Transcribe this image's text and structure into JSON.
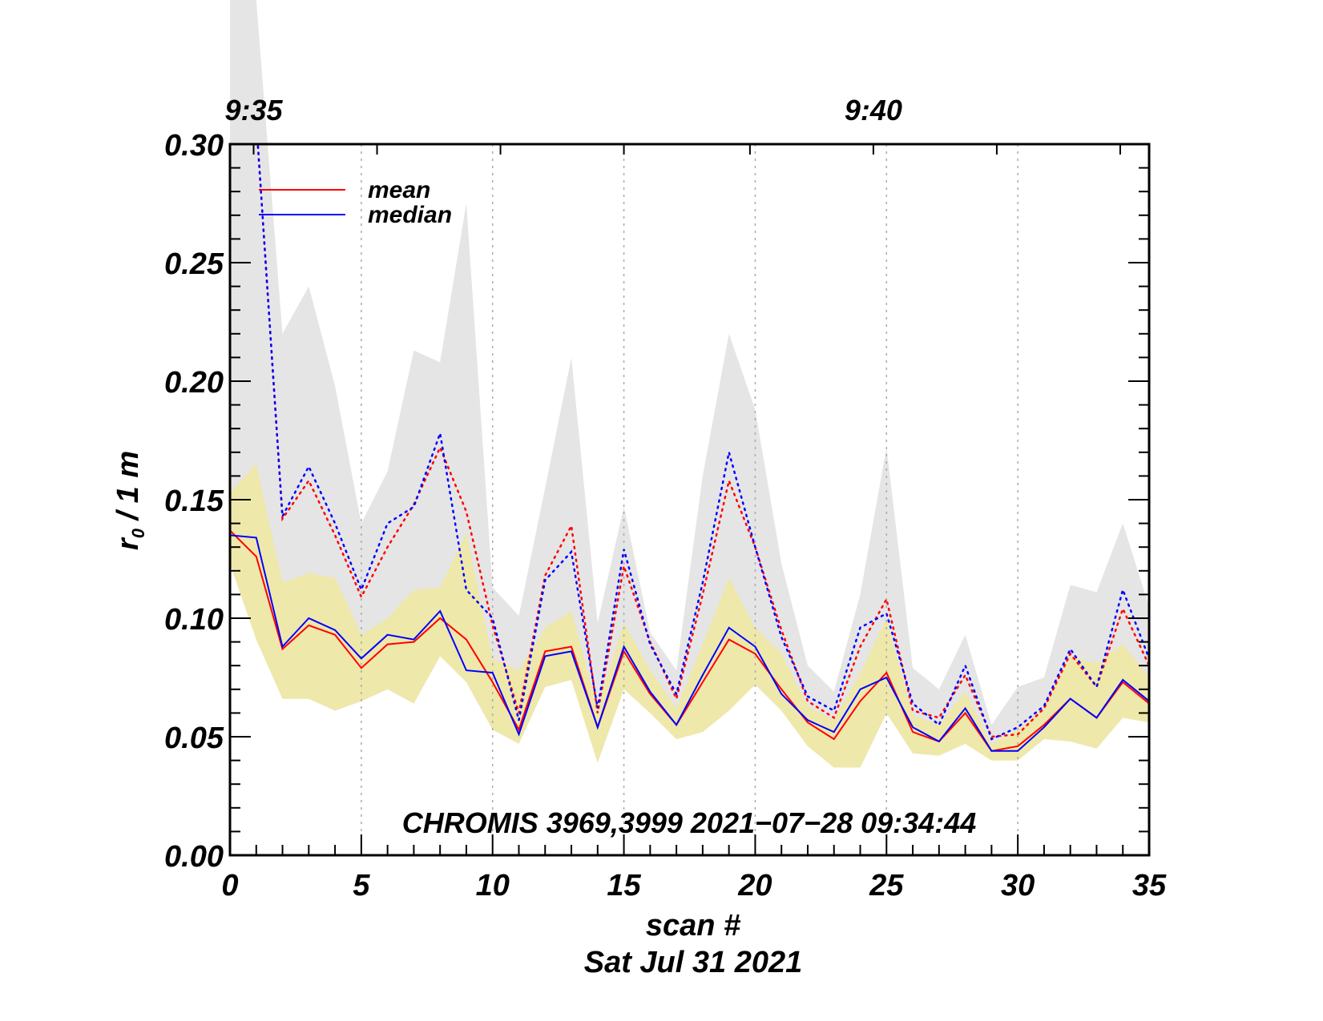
{
  "chart_data": {
    "type": "line",
    "title": "",
    "xlabel": "scan #",
    "xlabel2": "Sat Jul 31 2021",
    "ylabel": "r₀ / 1 m",
    "ylabel_main": "r",
    "ylabel_sub": "0",
    "ylabel_rest": " / 1 m",
    "annotation": "CHROMIS 3969,3999 2021−07−28 09:34:44",
    "xlim": [
      0,
      35
    ],
    "ylim": [
      0.0,
      0.3
    ],
    "x_ticks": [
      0,
      5,
      10,
      15,
      20,
      25,
      30,
      35
    ],
    "x_tick_labels": [
      "0",
      "5",
      "10",
      "15",
      "20",
      "25",
      "30",
      "35"
    ],
    "y_ticks": [
      0.0,
      0.05,
      0.1,
      0.15,
      0.2,
      0.25,
      0.3
    ],
    "y_tick_labels": [
      "0.00",
      "0.05",
      "0.10",
      "0.15",
      "0.20",
      "0.25",
      "0.30"
    ],
    "top_axis_labels": [
      {
        "scan": 0.9,
        "label": "9:35"
      },
      {
        "scan": 24.5,
        "label": "9:40"
      }
    ],
    "grid_verticals": [
      5,
      10,
      15,
      20,
      25,
      30
    ],
    "legend": {
      "placement": "top-left",
      "entries": [
        {
          "label": "mean",
          "color": "#ff0000"
        },
        {
          "label": "median",
          "color": "#0000ff"
        }
      ]
    },
    "x": [
      0,
      1,
      2,
      3,
      4,
      5,
      6,
      7,
      8,
      9,
      10,
      11,
      12,
      13,
      14,
      15,
      16,
      17,
      18,
      19,
      20,
      21,
      22,
      23,
      24,
      25,
      26,
      27,
      28,
      29,
      30,
      31,
      32,
      33,
      34,
      35
    ],
    "bands": [
      {
        "name": "max-range",
        "color": "#e5e5e5",
        "upper": [
          0.45,
          0.45,
          0.22,
          0.24,
          0.198,
          0.14,
          0.162,
          0.213,
          0.208,
          0.275,
          0.113,
          0.101,
          0.155,
          0.21,
          0.098,
          0.147,
          0.094,
          0.078,
          0.16,
          0.22,
          0.188,
          0.123,
          0.08,
          0.069,
          0.11,
          0.172,
          0.079,
          0.07,
          0.093,
          0.055,
          0.071,
          0.075,
          0.114,
          0.111,
          0.14,
          0.105
        ],
        "lower": [
          0.123,
          0.091,
          0.066,
          0.066,
          0.061,
          0.065,
          0.07,
          0.064,
          0.084,
          0.073,
          0.053,
          0.047,
          0.071,
          0.074,
          0.039,
          0.07,
          0.06,
          0.049,
          0.052,
          0.061,
          0.072,
          0.061,
          0.046,
          0.037,
          0.037,
          0.06,
          0.043,
          0.042,
          0.047,
          0.04,
          0.04,
          0.049,
          0.048,
          0.045,
          0.058,
          0.056
        ]
      },
      {
        "name": "std-range",
        "color": "#eee8aa",
        "upper": [
          0.153,
          0.165,
          0.115,
          0.119,
          0.117,
          0.093,
          0.1,
          0.112,
          0.113,
          0.136,
          0.083,
          0.078,
          0.096,
          0.103,
          0.063,
          0.098,
          0.078,
          0.062,
          0.089,
          0.117,
          0.096,
          0.085,
          0.063,
          0.057,
          0.077,
          0.1,
          0.059,
          0.055,
          0.069,
          0.047,
          0.053,
          0.062,
          0.084,
          0.081,
          0.089,
          0.075
        ],
        "lower": [
          0.123,
          0.091,
          0.066,
          0.066,
          0.061,
          0.065,
          0.07,
          0.064,
          0.084,
          0.073,
          0.053,
          0.047,
          0.071,
          0.074,
          0.039,
          0.07,
          0.06,
          0.049,
          0.052,
          0.061,
          0.072,
          0.061,
          0.046,
          0.037,
          0.037,
          0.06,
          0.043,
          0.042,
          0.047,
          0.04,
          0.04,
          0.049,
          0.048,
          0.045,
          0.058,
          0.056
        ]
      }
    ],
    "series": [
      {
        "name": "mean",
        "color": "#ff0000",
        "style": "solid",
        "values": [
          0.137,
          0.126,
          0.087,
          0.097,
          0.093,
          0.079,
          0.089,
          0.09,
          0.1,
          0.091,
          0.073,
          0.053,
          0.086,
          0.088,
          0.054,
          0.086,
          0.068,
          0.055,
          0.073,
          0.091,
          0.085,
          0.07,
          0.056,
          0.049,
          0.065,
          0.077,
          0.052,
          0.048,
          0.06,
          0.044,
          0.046,
          0.055,
          0.066,
          0.058,
          0.073,
          0.064
        ]
      },
      {
        "name": "median",
        "color": "#0000ff",
        "style": "solid",
        "values": [
          0.135,
          0.134,
          0.088,
          0.1,
          0.095,
          0.083,
          0.093,
          0.091,
          0.103,
          0.078,
          0.077,
          0.051,
          0.084,
          0.086,
          0.054,
          0.088,
          0.069,
          0.055,
          0.076,
          0.096,
          0.088,
          0.068,
          0.057,
          0.052,
          0.07,
          0.075,
          0.054,
          0.048,
          0.062,
          0.044,
          0.044,
          0.054,
          0.066,
          0.058,
          0.074,
          0.065
        ]
      },
      {
        "name": "mean (upper)",
        "color": "#ff0000",
        "style": "dotted",
        "values": [
          0.36,
          0.31,
          0.142,
          0.158,
          0.135,
          0.109,
          0.13,
          0.148,
          0.172,
          0.145,
          0.097,
          0.06,
          0.118,
          0.139,
          0.06,
          0.122,
          0.09,
          0.066,
          0.11,
          0.158,
          0.13,
          0.095,
          0.065,
          0.058,
          0.088,
          0.108,
          0.061,
          0.058,
          0.076,
          0.05,
          0.051,
          0.062,
          0.085,
          0.071,
          0.104,
          0.08
        ]
      },
      {
        "name": "median (upper)",
        "color": "#0000ff",
        "style": "dotted",
        "values": [
          0.36,
          0.31,
          0.143,
          0.164,
          0.14,
          0.112,
          0.14,
          0.147,
          0.178,
          0.112,
          0.1,
          0.057,
          0.116,
          0.128,
          0.062,
          0.129,
          0.089,
          0.068,
          0.115,
          0.17,
          0.13,
          0.092,
          0.067,
          0.061,
          0.096,
          0.102,
          0.064,
          0.055,
          0.08,
          0.049,
          0.054,
          0.063,
          0.087,
          0.071,
          0.112,
          0.083
        ]
      }
    ]
  }
}
